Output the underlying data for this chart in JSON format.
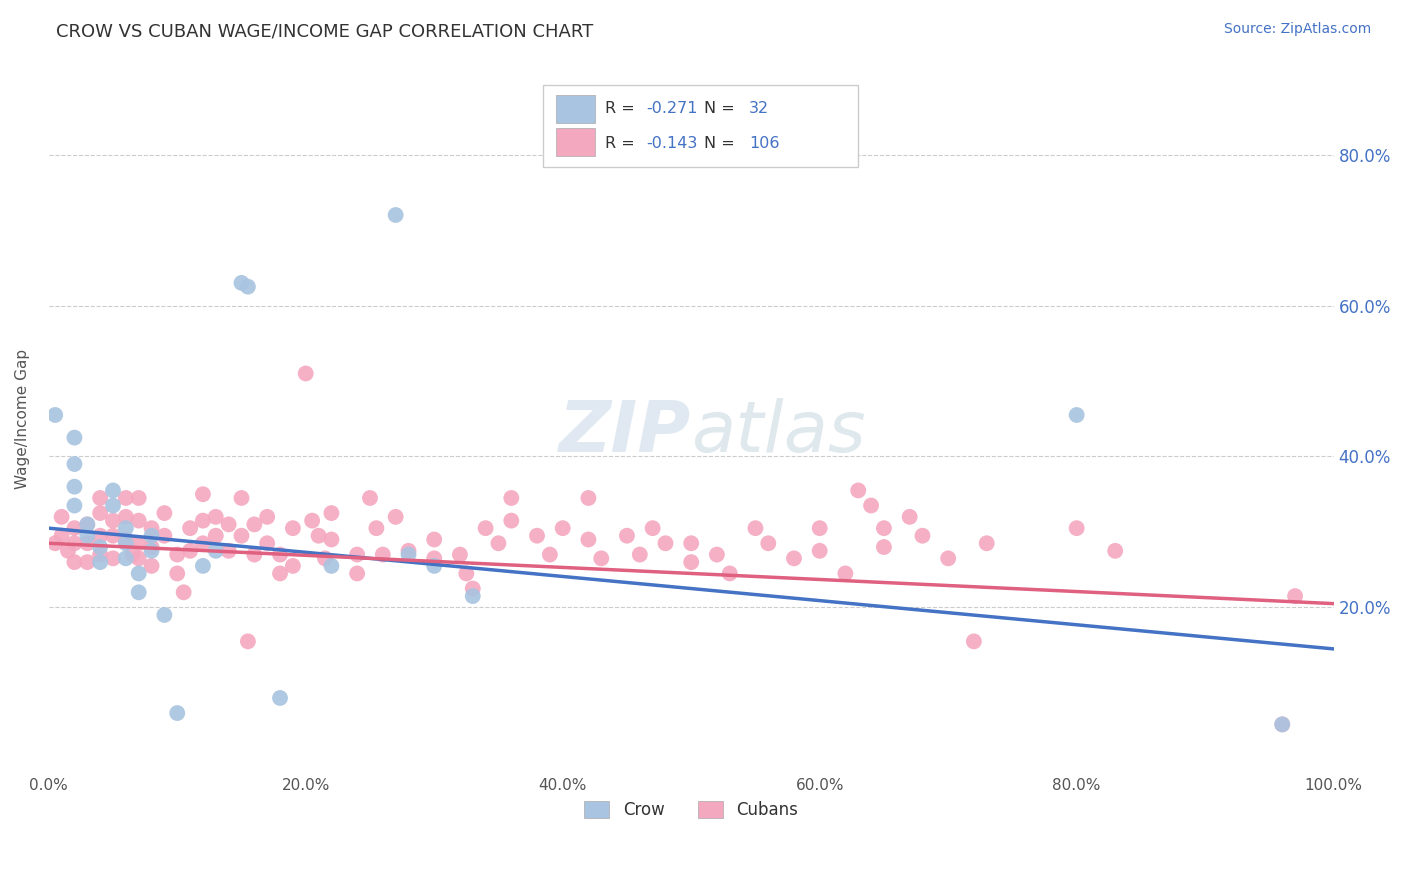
{
  "title": "CROW VS CUBAN WAGE/INCOME GAP CORRELATION CHART",
  "source": "Source: ZipAtlas.com",
  "ylabel": "Wage/Income Gap",
  "xlim": [
    0.0,
    1.0
  ],
  "ylim": [
    -0.02,
    0.92
  ],
  "xtick_labels": [
    "0.0%",
    "20.0%",
    "40.0%",
    "60.0%",
    "80.0%",
    "100.0%"
  ],
  "xtick_vals": [
    0.0,
    0.2,
    0.4,
    0.6,
    0.8,
    1.0
  ],
  "ytick_labels": [
    "20.0%",
    "40.0%",
    "60.0%",
    "80.0%"
  ],
  "ytick_vals": [
    0.2,
    0.4,
    0.6,
    0.8
  ],
  "crow_R": -0.271,
  "crow_N": 32,
  "cuban_R": -0.143,
  "cuban_N": 106,
  "crow_color": "#a8c4e0",
  "cuban_color": "#f4a8c0",
  "crow_line_color": "#4472c4",
  "cuban_line_color": "#e06080",
  "crow_scatter": [
    [
      0.005,
      0.455
    ],
    [
      0.02,
      0.425
    ],
    [
      0.02,
      0.39
    ],
    [
      0.02,
      0.36
    ],
    [
      0.02,
      0.335
    ],
    [
      0.03,
      0.31
    ],
    [
      0.03,
      0.295
    ],
    [
      0.04,
      0.28
    ],
    [
      0.04,
      0.26
    ],
    [
      0.05,
      0.355
    ],
    [
      0.05,
      0.335
    ],
    [
      0.06,
      0.305
    ],
    [
      0.06,
      0.285
    ],
    [
      0.06,
      0.265
    ],
    [
      0.07,
      0.245
    ],
    [
      0.07,
      0.22
    ],
    [
      0.08,
      0.295
    ],
    [
      0.08,
      0.275
    ],
    [
      0.09,
      0.19
    ],
    [
      0.1,
      0.06
    ],
    [
      0.12,
      0.255
    ],
    [
      0.13,
      0.275
    ],
    [
      0.15,
      0.63
    ],
    [
      0.155,
      0.625
    ],
    [
      0.18,
      0.08
    ],
    [
      0.22,
      0.255
    ],
    [
      0.27,
      0.72
    ],
    [
      0.28,
      0.27
    ],
    [
      0.3,
      0.255
    ],
    [
      0.33,
      0.215
    ],
    [
      0.8,
      0.455
    ],
    [
      0.96,
      0.045
    ]
  ],
  "cuban_scatter": [
    [
      0.005,
      0.285
    ],
    [
      0.01,
      0.32
    ],
    [
      0.01,
      0.295
    ],
    [
      0.015,
      0.275
    ],
    [
      0.02,
      0.305
    ],
    [
      0.02,
      0.285
    ],
    [
      0.02,
      0.26
    ],
    [
      0.03,
      0.31
    ],
    [
      0.03,
      0.285
    ],
    [
      0.03,
      0.26
    ],
    [
      0.04,
      0.345
    ],
    [
      0.04,
      0.325
    ],
    [
      0.04,
      0.295
    ],
    [
      0.04,
      0.27
    ],
    [
      0.05,
      0.315
    ],
    [
      0.05,
      0.295
    ],
    [
      0.05,
      0.265
    ],
    [
      0.06,
      0.345
    ],
    [
      0.06,
      0.32
    ],
    [
      0.06,
      0.29
    ],
    [
      0.065,
      0.27
    ],
    [
      0.07,
      0.345
    ],
    [
      0.07,
      0.315
    ],
    [
      0.07,
      0.285
    ],
    [
      0.07,
      0.265
    ],
    [
      0.08,
      0.305
    ],
    [
      0.08,
      0.28
    ],
    [
      0.08,
      0.255
    ],
    [
      0.09,
      0.325
    ],
    [
      0.09,
      0.295
    ],
    [
      0.1,
      0.27
    ],
    [
      0.1,
      0.245
    ],
    [
      0.105,
      0.22
    ],
    [
      0.11,
      0.305
    ],
    [
      0.11,
      0.275
    ],
    [
      0.12,
      0.35
    ],
    [
      0.12,
      0.315
    ],
    [
      0.12,
      0.285
    ],
    [
      0.13,
      0.32
    ],
    [
      0.13,
      0.295
    ],
    [
      0.14,
      0.31
    ],
    [
      0.14,
      0.275
    ],
    [
      0.15,
      0.345
    ],
    [
      0.15,
      0.295
    ],
    [
      0.155,
      0.155
    ],
    [
      0.16,
      0.31
    ],
    [
      0.16,
      0.27
    ],
    [
      0.17,
      0.32
    ],
    [
      0.17,
      0.285
    ],
    [
      0.18,
      0.27
    ],
    [
      0.18,
      0.245
    ],
    [
      0.19,
      0.305
    ],
    [
      0.19,
      0.255
    ],
    [
      0.2,
      0.51
    ],
    [
      0.205,
      0.315
    ],
    [
      0.21,
      0.295
    ],
    [
      0.215,
      0.265
    ],
    [
      0.22,
      0.325
    ],
    [
      0.22,
      0.29
    ],
    [
      0.24,
      0.27
    ],
    [
      0.24,
      0.245
    ],
    [
      0.25,
      0.345
    ],
    [
      0.255,
      0.305
    ],
    [
      0.26,
      0.27
    ],
    [
      0.27,
      0.32
    ],
    [
      0.28,
      0.275
    ],
    [
      0.3,
      0.29
    ],
    [
      0.3,
      0.265
    ],
    [
      0.32,
      0.27
    ],
    [
      0.325,
      0.245
    ],
    [
      0.33,
      0.225
    ],
    [
      0.34,
      0.305
    ],
    [
      0.35,
      0.285
    ],
    [
      0.36,
      0.345
    ],
    [
      0.36,
      0.315
    ],
    [
      0.38,
      0.295
    ],
    [
      0.39,
      0.27
    ],
    [
      0.4,
      0.305
    ],
    [
      0.42,
      0.345
    ],
    [
      0.42,
      0.29
    ],
    [
      0.43,
      0.265
    ],
    [
      0.45,
      0.295
    ],
    [
      0.46,
      0.27
    ],
    [
      0.47,
      0.305
    ],
    [
      0.48,
      0.285
    ],
    [
      0.5,
      0.26
    ],
    [
      0.5,
      0.285
    ],
    [
      0.52,
      0.27
    ],
    [
      0.53,
      0.245
    ],
    [
      0.55,
      0.305
    ],
    [
      0.56,
      0.285
    ],
    [
      0.58,
      0.265
    ],
    [
      0.6,
      0.305
    ],
    [
      0.6,
      0.275
    ],
    [
      0.62,
      0.245
    ],
    [
      0.63,
      0.355
    ],
    [
      0.64,
      0.335
    ],
    [
      0.65,
      0.305
    ],
    [
      0.65,
      0.28
    ],
    [
      0.67,
      0.32
    ],
    [
      0.68,
      0.295
    ],
    [
      0.7,
      0.265
    ],
    [
      0.72,
      0.155
    ],
    [
      0.73,
      0.285
    ],
    [
      0.8,
      0.305
    ],
    [
      0.83,
      0.275
    ],
    [
      0.96,
      0.045
    ],
    [
      0.97,
      0.215
    ]
  ],
  "crow_trend": [
    0.0,
    1.0,
    0.305,
    0.145
  ],
  "cuban_trend": [
    0.0,
    1.0,
    0.285,
    0.205
  ]
}
